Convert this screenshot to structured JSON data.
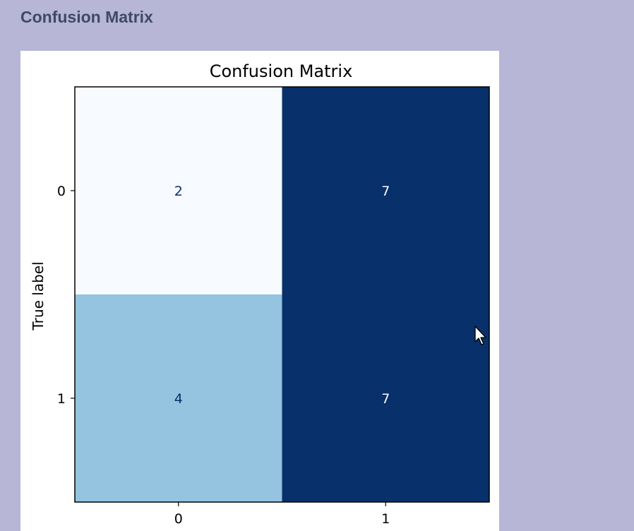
{
  "page": {
    "heading": "Confusion Matrix"
  },
  "chart_data": {
    "type": "heatmap",
    "title": "Confusion Matrix",
    "xlabel": "",
    "ylabel": "True label",
    "x_tick_labels": [
      "0",
      "1"
    ],
    "y_tick_labels": [
      "0",
      "1"
    ],
    "matrix": [
      [
        2,
        7
      ],
      [
        4,
        7
      ]
    ],
    "colormap": "Blues",
    "color_range": [
      2,
      7
    ],
    "grid": false,
    "legend": "none"
  }
}
